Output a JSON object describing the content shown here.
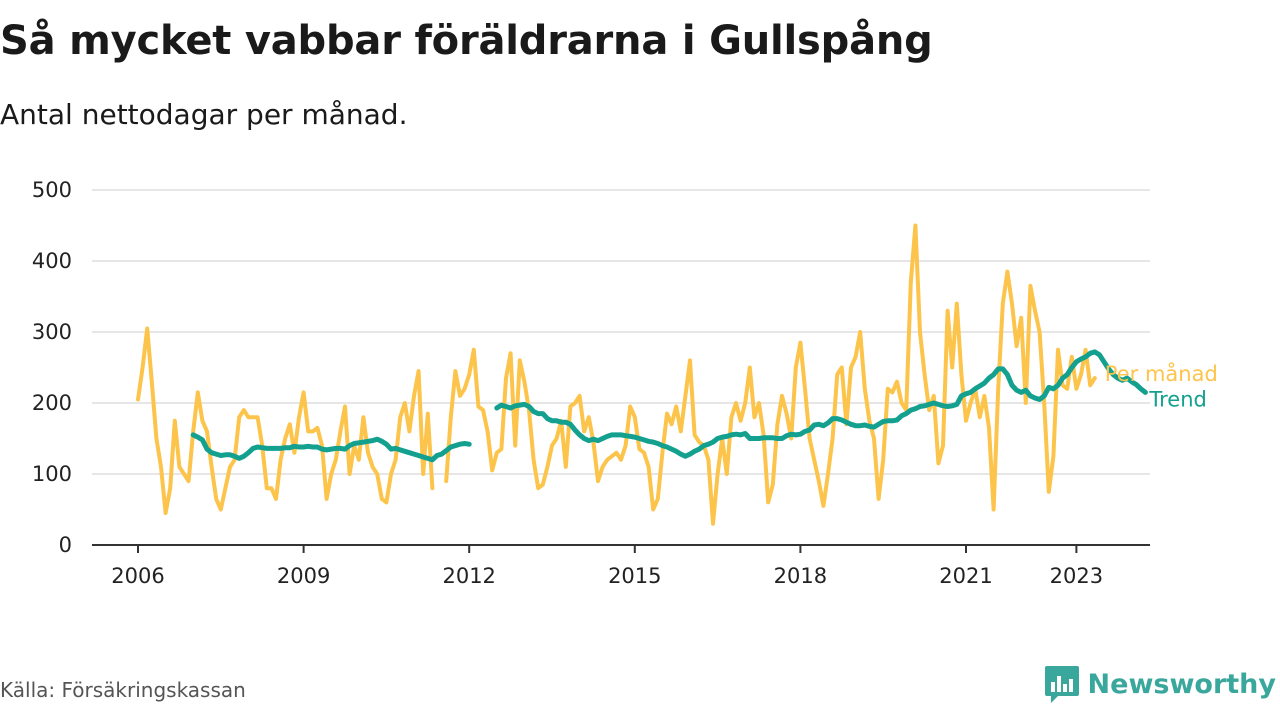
{
  "header": {
    "title": "Så mycket vabbar föräldrarna i Gullspång",
    "subtitle": "Antal nettodagar per månad."
  },
  "footer": {
    "source": "Källa: Försäkringskassan",
    "brand": "Newsworthy"
  },
  "colors": {
    "monthly": "#fcc44b",
    "trend": "#13a08f",
    "grid": "#dddddd",
    "axis": "#333333",
    "brand": "#3aa79d"
  },
  "chart_data": {
    "type": "line",
    "xlabel": "",
    "ylabel": "",
    "ylim": [
      0,
      500
    ],
    "yticks": [
      0,
      100,
      200,
      300,
      400,
      500
    ],
    "xticks": [
      "2006",
      "2009",
      "2012",
      "2015",
      "2018",
      "2021",
      "2023"
    ],
    "xlim": [
      "2005-03",
      "2024-05"
    ],
    "grid": "horizontal",
    "legend": "inline labels at right end of lines",
    "series": [
      {
        "name": "Per månad",
        "start": "2006-01",
        "values": [
          205,
          250,
          305,
          230,
          150,
          110,
          45,
          80,
          175,
          110,
          100,
          90,
          160,
          215,
          175,
          160,
          110,
          65,
          50,
          80,
          110,
          120,
          180,
          190,
          180,
          180,
          180,
          140,
          80,
          80,
          65,
          120,
          150,
          170,
          130,
          180,
          215,
          160,
          160,
          165,
          140,
          65,
          100,
          120,
          160,
          195,
          100,
          140,
          120,
          180,
          130,
          110,
          100,
          65,
          60,
          100,
          120,
          180,
          200,
          160,
          210,
          245,
          100,
          185,
          80,
          null,
          null,
          90,
          180,
          245,
          210,
          220,
          240,
          275,
          195,
          190,
          160,
          105,
          130,
          135,
          235,
          270,
          140,
          260,
          230,
          190,
          120,
          80,
          85,
          110,
          140,
          150,
          175,
          110,
          195,
          200,
          210,
          160,
          180,
          145,
          90,
          110,
          120,
          125,
          130,
          120,
          140,
          195,
          180,
          135,
          130,
          110,
          50,
          65,
          130,
          185,
          170,
          195,
          160,
          210,
          260,
          155,
          145,
          140,
          120,
          30,
          100,
          150,
          100,
          180,
          200,
          175,
          200,
          250,
          180,
          200,
          155,
          60,
          85,
          170,
          210,
          185,
          150,
          250,
          285,
          220,
          150,
          120,
          90,
          55,
          100,
          150,
          240,
          250,
          170,
          250,
          265,
          300,
          220,
          175,
          150,
          65,
          120,
          220,
          215,
          230,
          200,
          190,
          370,
          450,
          300,
          240,
          190,
          210,
          115,
          140,
          330,
          250,
          340,
          240,
          175,
          200,
          220,
          180,
          210,
          165,
          50,
          220,
          340,
          385,
          340,
          280,
          320,
          200,
          365,
          330,
          300,
          200,
          75,
          125,
          275,
          225,
          220,
          265,
          220,
          240,
          275,
          225,
          235
        ]
      },
      {
        "name": "Trend",
        "start": "2007-01",
        "values": [
          155,
          152,
          148,
          135,
          130,
          128,
          126,
          127,
          127,
          125,
          122,
          125,
          130,
          136,
          138,
          137,
          136,
          136,
          136,
          136,
          137,
          137,
          139,
          138,
          138,
          139,
          138,
          138,
          135,
          134,
          135,
          136,
          136,
          135,
          140,
          143,
          144,
          145,
          146,
          147,
          149,
          146,
          142,
          135,
          136,
          134,
          132,
          130,
          128,
          126,
          124,
          122,
          120,
          126,
          128,
          133,
          138,
          140,
          142,
          143,
          142,
          null,
          null,
          null,
          null,
          null,
          null,
          null,
          null,
          null,
          null,
          null,
          null,
          null,
          null,
          null,
          null,
          null,
          null,
          null,
          null,
          null,
          null,
          null,
          null,
          null,
          null,
          null,
          null,
          null,
          null,
          null,
          null,
          null,
          null,
          null,
          null,
          null,
          null,
          null,
          null,
          null,
          null,
          null,
          null,
          null,
          null,
          null,
          null,
          null,
          null,
          null,
          null,
          null,
          null,
          null,
          null,
          null,
          null,
          null,
          null,
          null,
          null,
          null,
          null,
          null,
          null,
          null,
          null,
          null,
          null,
          null,
          null,
          null,
          null,
          null,
          null,
          null,
          null,
          null,
          null,
          null,
          null,
          null,
          null,
          null,
          null,
          null,
          null,
          null,
          null,
          null,
          null,
          null,
          null,
          null,
          null,
          null,
          null,
          null,
          null,
          null,
          null,
          null,
          null,
          null,
          null,
          null,
          null,
          null,
          null,
          null,
          null,
          null,
          null,
          null,
          null,
          null,
          null,
          null,
          null,
          null,
          null,
          null,
          null,
          null,
          null,
          null,
          null,
          null,
          null,
          null,
          null,
          null,
          null,
          null,
          null,
          null,
          null,
          null,
          null,
          null,
          null,
          null,
          null,
          null,
          null,
          null,
          null,
          null,
          null,
          null,
          null,
          null,
          null,
          null,
          null,
          null,
          null,
          null,
          null,
          null,
          null,
          null,
          null,
          null,
          null,
          null,
          null,
          null,
          null,
          null,
          null,
          null,
          null,
          null,
          null,
          null,
          null,
          null,
          null,
          null,
          null,
          null
        ]
      },
      {
        "name": "Trend",
        "start": "2012-07",
        "values": [
          193,
          197,
          195,
          193,
          196,
          197,
          198,
          195,
          188,
          185,
          185,
          178,
          175,
          175,
          173,
          173,
          170,
          162,
          155,
          150,
          147,
          149,
          147,
          150,
          153,
          155,
          155,
          155,
          154,
          153,
          152,
          150,
          148,
          146,
          145,
          143,
          140,
          138,
          135,
          132,
          128,
          125,
          128,
          132,
          135,
          140,
          142,
          145,
          150,
          152,
          153,
          155,
          156,
          155,
          157,
          150,
          150,
          150,
          151,
          151,
          151,
          150,
          150,
          154,
          156,
          155,
          156,
          160,
          162,
          169,
          170,
          168,
          172,
          178,
          178,
          176,
          173,
          170,
          168,
          168,
          169,
          167,
          166,
          170,
          174,
          175,
          175,
          176,
          182,
          185,
          190,
          192,
          195,
          196,
          198,
          200,
          198,
          196,
          195,
          196,
          198,
          210,
          213,
          215,
          220,
          224,
          228,
          235,
          240,
          248,
          248,
          240,
          225,
          218,
          215,
          218,
          210,
          207,
          205,
          210,
          222,
          220,
          225,
          235,
          240,
          250,
          258,
          262,
          265,
          270,
          272,
          268,
          258,
          248,
          240,
          235,
          232,
          235,
          230,
          226,
          220,
          215
        ]
      }
    ]
  }
}
